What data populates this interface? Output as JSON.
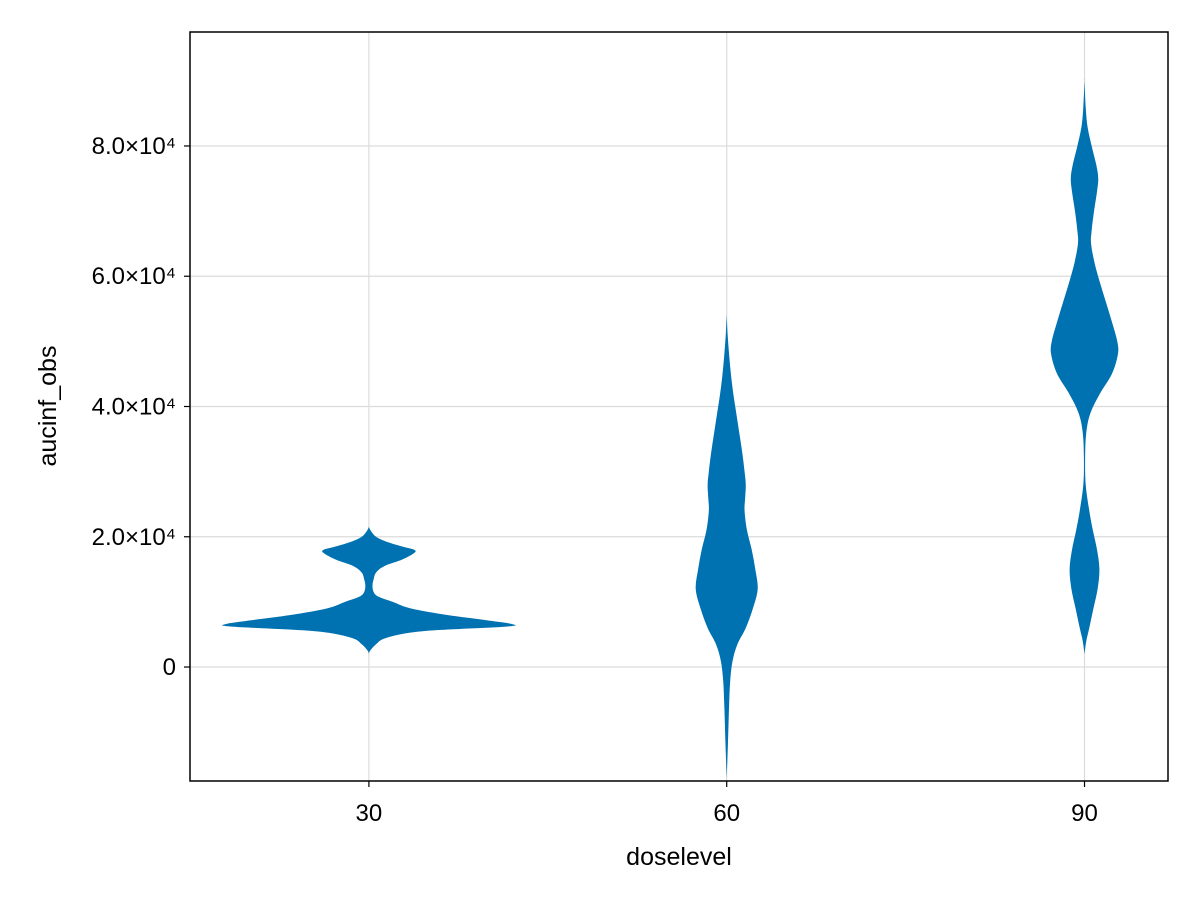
{
  "chart_data": {
    "type": "violin",
    "title": "",
    "xlabel": "doselevel",
    "ylabel": "aucinf_obs",
    "categories": [
      "30",
      "60",
      "90"
    ],
    "xlim": [
      15,
      97
    ],
    "ylim": [
      -17500,
      97500
    ],
    "x_ticks": [
      30,
      60,
      90
    ],
    "y_ticks": [
      {
        "value": 0,
        "label": "0"
      },
      {
        "value": 20000,
        "label": "2.0×10⁴"
      },
      {
        "value": 40000,
        "label": "4.0×10⁴"
      },
      {
        "value": 60000,
        "label": "6.0×10⁴"
      },
      {
        "value": 80000,
        "label": "8.0×10⁴"
      }
    ],
    "grid": true,
    "legend": "none",
    "color": "#0072b2",
    "violins": [
      {
        "x": 30,
        "density": [
          [
            2000,
            0
          ],
          [
            2500,
            0.1
          ],
          [
            3500,
            0.6
          ],
          [
            4500,
            1.5
          ],
          [
            5500,
            4.5
          ],
          [
            6200,
            11.5
          ],
          [
            6600,
            12.0
          ],
          [
            7200,
            9.8
          ],
          [
            8000,
            6.5
          ],
          [
            9000,
            3.5
          ],
          [
            10000,
            2.0
          ],
          [
            10800,
            0.8
          ],
          [
            11500,
            0.4
          ],
          [
            12500,
            0.3
          ],
          [
            13500,
            0.4
          ],
          [
            14500,
            0.6
          ],
          [
            15500,
            1.3
          ],
          [
            16500,
            2.8
          ],
          [
            17500,
            3.8
          ],
          [
            18000,
            3.8
          ],
          [
            18500,
            2.8
          ],
          [
            19300,
            1.4
          ],
          [
            20000,
            0.6
          ],
          [
            20800,
            0.2
          ],
          [
            21500,
            0
          ]
        ]
      },
      {
        "x": 60,
        "density": [
          [
            -17000,
            0
          ],
          [
            -12000,
            0.1
          ],
          [
            -6000,
            0.2
          ],
          [
            -2000,
            0.3
          ],
          [
            1000,
            0.5
          ],
          [
            3500,
            0.9
          ],
          [
            6000,
            1.6
          ],
          [
            9000,
            2.2
          ],
          [
            12000,
            2.6
          ],
          [
            15000,
            2.4
          ],
          [
            18000,
            2.1
          ],
          [
            21000,
            1.7
          ],
          [
            24000,
            1.5
          ],
          [
            26000,
            1.55
          ],
          [
            28000,
            1.6
          ],
          [
            30000,
            1.5
          ],
          [
            33000,
            1.3
          ],
          [
            36000,
            1.05
          ],
          [
            39000,
            0.8
          ],
          [
            42000,
            0.55
          ],
          [
            45000,
            0.35
          ],
          [
            48000,
            0.2
          ],
          [
            51000,
            0.08
          ],
          [
            54000,
            0
          ]
        ]
      },
      {
        "x": 90,
        "density": [
          [
            2000,
            0
          ],
          [
            4000,
            0.15
          ],
          [
            6000,
            0.4
          ],
          [
            9000,
            0.75
          ],
          [
            12000,
            1.1
          ],
          [
            15000,
            1.25
          ],
          [
            18000,
            1.05
          ],
          [
            21000,
            0.7
          ],
          [
            24000,
            0.4
          ],
          [
            28000,
            0.1
          ],
          [
            32000,
            0.05
          ],
          [
            36000,
            0.15
          ],
          [
            39000,
            0.5
          ],
          [
            42000,
            1.3
          ],
          [
            45000,
            2.3
          ],
          [
            48000,
            2.8
          ],
          [
            50000,
            2.75
          ],
          [
            53000,
            2.3
          ],
          [
            56000,
            1.8
          ],
          [
            59000,
            1.3
          ],
          [
            62000,
            0.85
          ],
          [
            65000,
            0.55
          ],
          [
            67000,
            0.6
          ],
          [
            70000,
            0.8
          ],
          [
            73000,
            1.05
          ],
          [
            75000,
            1.15
          ],
          [
            77000,
            1.0
          ],
          [
            80000,
            0.6
          ],
          [
            83000,
            0.25
          ],
          [
            86000,
            0.1
          ],
          [
            90000,
            0
          ]
        ]
      }
    ]
  }
}
